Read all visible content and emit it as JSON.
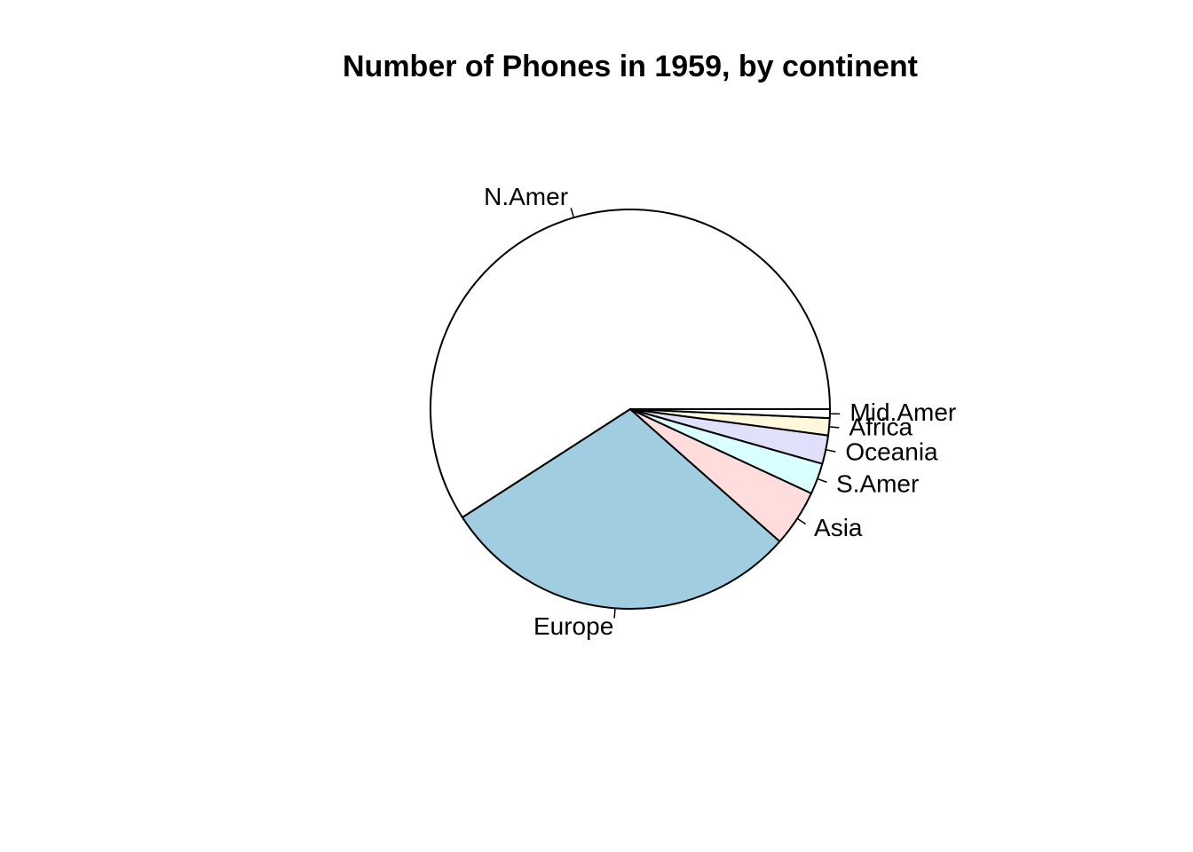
{
  "chart_data": {
    "type": "pie",
    "title": "Number of Phones in 1959, by continent",
    "labels": [
      "N.Amer",
      "Europe",
      "Asia",
      "S.Amer",
      "Oceania",
      "Africa",
      "Mid.Amer"
    ],
    "values": [
      60423,
      29990,
      4708,
      2568,
      2366,
      1411,
      733
    ],
    "colors": [
      "#FFFFFF",
      "#A0CDE0",
      "#FFDDDD",
      "#D9FFFF",
      "#E0E0FA",
      "#FFF8DC",
      "#FFFFFF"
    ],
    "start_angle_degrees": 0,
    "direction": "counter-clockwise",
    "legend": "none"
  }
}
